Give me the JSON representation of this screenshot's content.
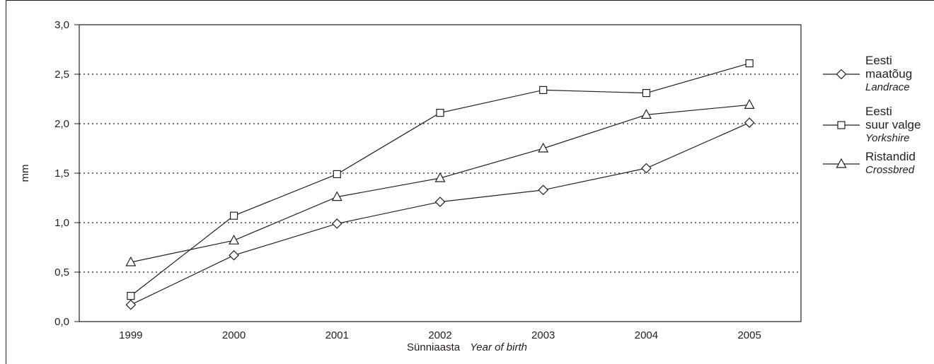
{
  "chart_data": {
    "type": "line",
    "x": [
      "1999",
      "2000",
      "2001",
      "2002",
      "2003",
      "2004",
      "2005"
    ],
    "ylabel": "mm",
    "xlabel": {
      "et": "Sünniaasta",
      "en": "Year of birth"
    },
    "ylim": [
      0,
      3.0
    ],
    "yticks": [
      "0,0",
      "0,5",
      "1,0",
      "1,5",
      "2,0",
      "2,5",
      "3,0"
    ],
    "grid": "dotted horizontal",
    "legend_position": "right",
    "series": [
      {
        "key": "landrace",
        "name_lines": [
          "Eesti",
          "maatõug"
        ],
        "name_en": "Landrace",
        "marker": "diamond",
        "values": [
          0.17,
          0.67,
          0.99,
          1.21,
          1.33,
          1.55,
          2.01
        ]
      },
      {
        "key": "yorkshire",
        "name_lines": [
          "Eesti",
          "suur valge"
        ],
        "name_en": "Yorkshire",
        "marker": "square",
        "values": [
          0.26,
          1.07,
          1.49,
          2.11,
          2.34,
          2.31,
          2.61
        ]
      },
      {
        "key": "crossbred",
        "name_lines": [
          "Ristandid"
        ],
        "name_en": "Crossbred",
        "marker": "triangle",
        "values": [
          0.6,
          0.82,
          1.26,
          1.45,
          1.75,
          2.09,
          2.19
        ]
      }
    ]
  }
}
